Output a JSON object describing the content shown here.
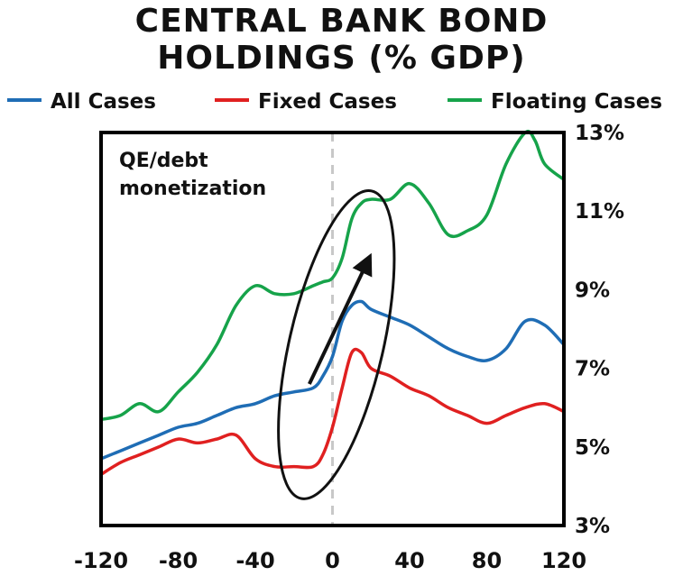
{
  "chart_data": {
    "type": "line",
    "title": "CENTRAL BANK BOND",
    "subtitle": "HOLDINGS (% GDP)",
    "xlabel": "",
    "ylabel": "",
    "xlim": [
      -120,
      120
    ],
    "ylim": [
      3,
      13
    ],
    "x_ticks": [
      -120,
      -80,
      -40,
      0,
      40,
      80,
      120
    ],
    "x_tick_labels": [
      "-120",
      "-80",
      "-40",
      "0",
      "40",
      "80",
      "120"
    ],
    "y_ticks": [
      3,
      5,
      7,
      9,
      11,
      13
    ],
    "y_tick_labels": [
      "3%",
      "5%",
      "7%",
      "9%",
      "11%",
      "13%"
    ],
    "y_axis_side": "right",
    "grid": false,
    "legend_position": "top",
    "reference_line_x": 0,
    "annotation": [
      "QE/debt",
      "monetization"
    ],
    "series": [
      {
        "name": "All Cases",
        "color": "#1f6db5",
        "x": [
          -120,
          -110,
          -100,
          -90,
          -80,
          -70,
          -60,
          -50,
          -40,
          -30,
          -20,
          -10,
          -5,
          0,
          5,
          10,
          15,
          20,
          30,
          40,
          50,
          60,
          70,
          80,
          90,
          100,
          110,
          120
        ],
        "y": [
          4.7,
          4.9,
          5.1,
          5.3,
          5.5,
          5.6,
          5.8,
          6.0,
          6.1,
          6.3,
          6.4,
          6.5,
          6.8,
          7.3,
          8.2,
          8.6,
          8.7,
          8.5,
          8.3,
          8.1,
          7.8,
          7.5,
          7.3,
          7.2,
          7.5,
          8.2,
          8.1,
          7.6
        ]
      },
      {
        "name": "Fixed Cases",
        "color": "#e02020",
        "x": [
          -120,
          -110,
          -100,
          -90,
          -80,
          -70,
          -60,
          -50,
          -40,
          -30,
          -20,
          -10,
          -5,
          0,
          5,
          10,
          15,
          20,
          30,
          40,
          50,
          60,
          70,
          80,
          90,
          100,
          110,
          120
        ],
        "y": [
          4.3,
          4.6,
          4.8,
          5.0,
          5.2,
          5.1,
          5.2,
          5.3,
          4.7,
          4.5,
          4.5,
          4.5,
          4.8,
          5.5,
          6.5,
          7.4,
          7.4,
          7.0,
          6.8,
          6.5,
          6.3,
          6.0,
          5.8,
          5.6,
          5.8,
          6.0,
          6.1,
          5.9
        ]
      },
      {
        "name": "Floating Cases",
        "color": "#16a34a",
        "x": [
          -120,
          -110,
          -100,
          -90,
          -80,
          -70,
          -60,
          -50,
          -40,
          -30,
          -20,
          -10,
          -5,
          0,
          5,
          10,
          15,
          20,
          30,
          40,
          50,
          60,
          70,
          80,
          90,
          100,
          105,
          110,
          120
        ],
        "y": [
          5.7,
          5.8,
          6.1,
          5.9,
          6.4,
          6.9,
          7.6,
          8.6,
          9.1,
          8.9,
          8.9,
          9.1,
          9.2,
          9.3,
          9.8,
          10.8,
          11.2,
          11.3,
          11.3,
          11.7,
          11.2,
          10.4,
          10.5,
          10.9,
          12.2,
          13.0,
          12.8,
          12.2,
          11.8
        ]
      }
    ]
  }
}
